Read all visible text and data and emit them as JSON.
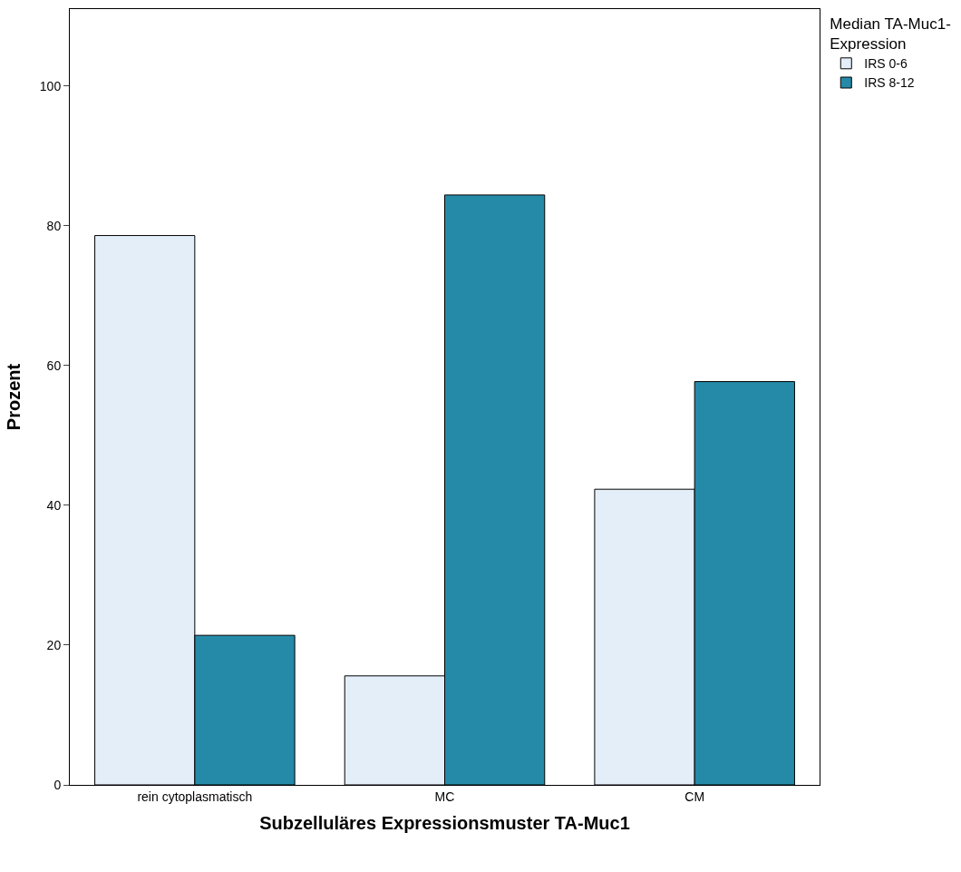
{
  "chart_data": {
    "type": "bar",
    "xlabel": "Subzelluläres Expressionsmuster TA-Muc1",
    "ylabel": "Prozent",
    "legend_title": "Median TA-Muc1-Expression",
    "categories": [
      "rein cytoplasmatisch",
      "MC",
      "CM"
    ],
    "series": [
      {
        "name": "IRS 0-6",
        "color": "#e3eef9",
        "values": [
          78.6,
          15.6,
          42.3
        ]
      },
      {
        "name": "IRS 8-12",
        "color": "#248aa8",
        "values": [
          21.4,
          84.4,
          57.7
        ]
      }
    ],
    "ylim": [
      0,
      111
    ],
    "yticks": [
      0,
      20,
      40,
      60,
      80,
      100
    ],
    "legend": "top right"
  }
}
